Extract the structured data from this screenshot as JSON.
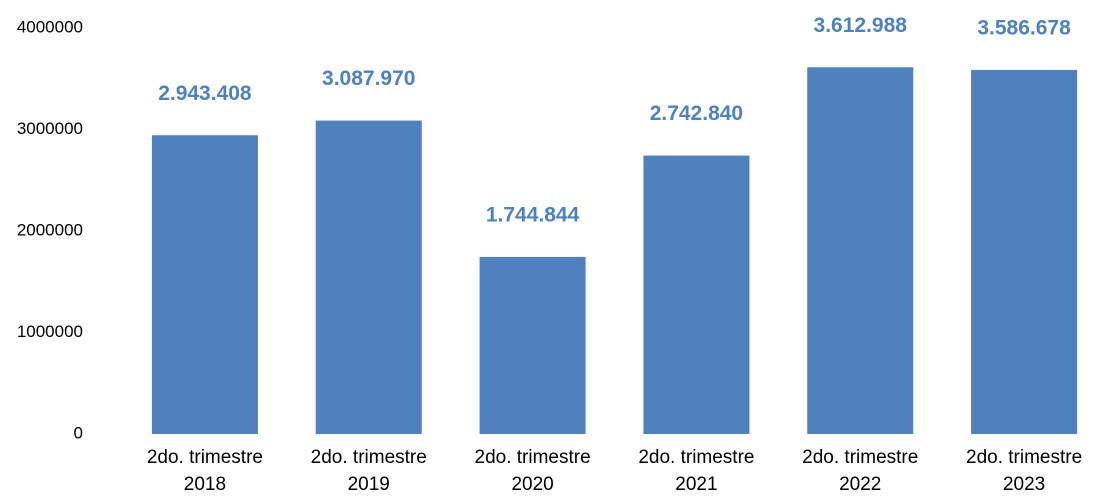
{
  "chart_data": {
    "type": "bar",
    "categories": [
      "2do. trimestre\n2018",
      "2do. trimestre\n2019",
      "2do. trimestre\n2020",
      "2do. trimestre\n2021",
      "2do. trimestre\n2022",
      "2do. trimestre\n2023"
    ],
    "values": [
      2943408,
      3087970,
      1744844,
      2742840,
      3612988,
      3586678
    ],
    "value_labels": [
      "2.943.408",
      "3.087.970",
      "1.744.844",
      "2.742.840",
      "3.612.988",
      "3.586.678"
    ],
    "color": "#4f81bd",
    "ylim": [
      0,
      4000000
    ],
    "yticks": [
      0,
      1000000,
      2000000,
      3000000,
      4000000
    ],
    "grid": false
  }
}
